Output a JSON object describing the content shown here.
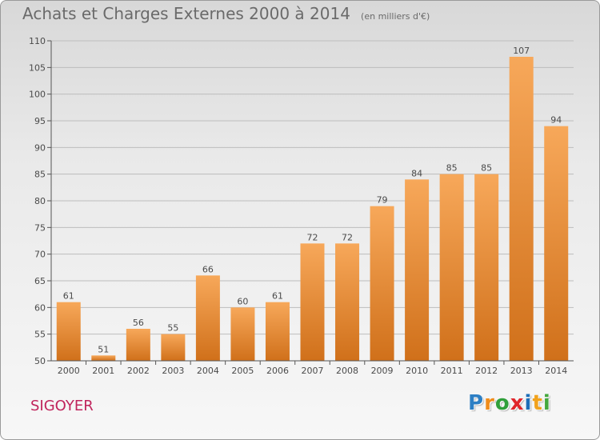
{
  "header": {
    "title": "Achats et Charges Externes 2000 à 2014",
    "subtitle": "(en milliers d'€)"
  },
  "footer": {
    "commune": "SIGOYER",
    "logo_text": "Proxiti",
    "logo_letters": [
      {
        "char": "P",
        "color": "#2d7fc4"
      },
      {
        "char": "r",
        "color": "#f08c1a"
      },
      {
        "char": "o",
        "color": "#2f9f3a"
      },
      {
        "char": "x",
        "color": "#e0262b"
      },
      {
        "char": "i",
        "color": "#1f6fb8"
      },
      {
        "char": "t",
        "color": "#f1a21c"
      },
      {
        "char": "i",
        "color": "#44a83d"
      }
    ]
  },
  "colors": {
    "bar_top": "#f7a85a",
    "bar_bottom": "#d0701a",
    "grid": "#bdbdbd",
    "axis": "#555555"
  },
  "chart_data": {
    "type": "bar",
    "categories": [
      "2000",
      "2001",
      "2002",
      "2003",
      "2004",
      "2005",
      "2006",
      "2007",
      "2008",
      "2009",
      "2010",
      "2011",
      "2012",
      "2013",
      "2014"
    ],
    "values": [
      61,
      51,
      56,
      55,
      66,
      60,
      61,
      72,
      72,
      79,
      84,
      85,
      85,
      107,
      94
    ],
    "ylim": [
      50,
      110
    ],
    "yticks": [
      50,
      55,
      60,
      65,
      70,
      75,
      80,
      85,
      90,
      95,
      100,
      105,
      110
    ],
    "grid": true,
    "data_labels": true
  }
}
